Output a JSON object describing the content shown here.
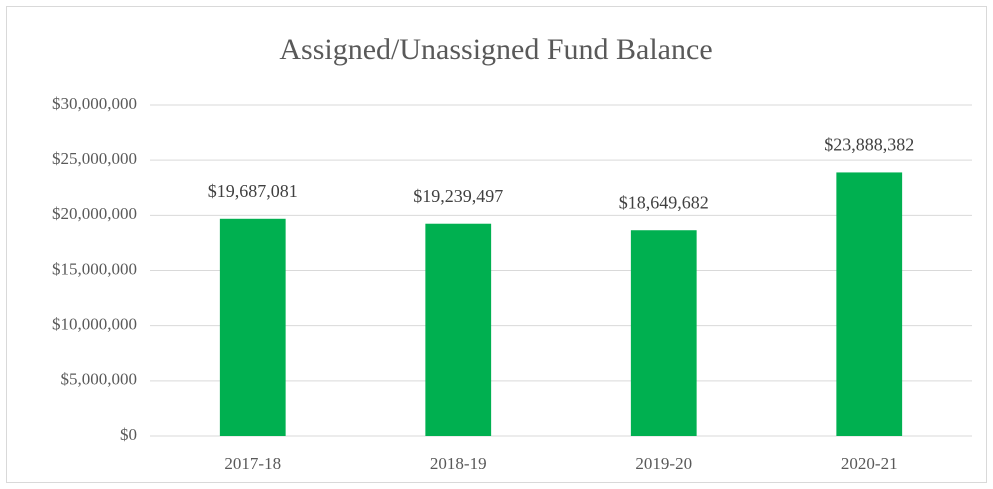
{
  "chart_data": {
    "type": "bar",
    "title": "Assigned/Unassigned Fund Balance",
    "categories": [
      "2017-18",
      "2018-19",
      "2019-20",
      "2020-21"
    ],
    "values": [
      19687081,
      19239497,
      18649682,
      23888382
    ],
    "value_labels": [
      "$19,687,081",
      "$19,239,497",
      "$18,649,682",
      "$23,888,382"
    ],
    "color": "#00b050",
    "ylim": [
      0,
      30000000
    ],
    "yticks": [
      {
        "value": 0,
        "label": "$0"
      },
      {
        "value": 5000000,
        "label": "$5,000,000"
      },
      {
        "value": 10000000,
        "label": "$10,000,000"
      },
      {
        "value": 15000000,
        "label": "$15,000,000"
      },
      {
        "value": 20000000,
        "label": "$20,000,000"
      },
      {
        "value": 25000000,
        "label": "$25,000,000"
      },
      {
        "value": 30000000,
        "label": "$30,000,000"
      }
    ],
    "grid": true
  }
}
